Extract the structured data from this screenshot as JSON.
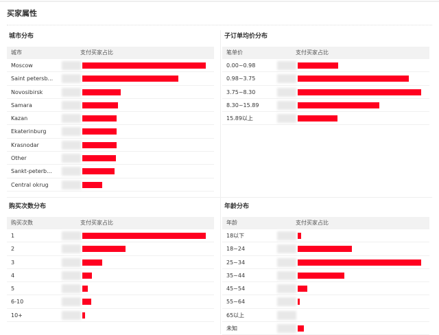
{
  "page_title": "买家属性",
  "accent_color": "#ff0020",
  "panels": [
    {
      "title": "城市分布",
      "col1": "城市",
      "col2": "支付买家占比",
      "rows": [
        {
          "label": "Moscow",
          "share": 1.0
        },
        {
          "label": "Saint petersb...",
          "share": 0.78
        },
        {
          "label": "Novosibirsk",
          "share": 0.31
        },
        {
          "label": "Samara",
          "share": 0.29
        },
        {
          "label": "Kazan",
          "share": 0.28
        },
        {
          "label": "Ekaterinburg",
          "share": 0.28
        },
        {
          "label": "Krasnodar",
          "share": 0.28
        },
        {
          "label": "Other",
          "share": 0.27
        },
        {
          "label": "Sankt-peterb...",
          "share": 0.26
        },
        {
          "label": "Central okrug",
          "share": 0.16
        }
      ]
    },
    {
      "title": "子订单均价分布",
      "col1": "笔单价",
      "col2": "支付买家占比",
      "rows": [
        {
          "label": "0.00~0.98",
          "share": 0.33
        },
        {
          "label": "0.98~3.75",
          "share": 0.9
        },
        {
          "label": "3.75~8.30",
          "share": 1.0
        },
        {
          "label": "8.30~15.89",
          "share": 0.66
        },
        {
          "label": "15.89以上",
          "share": 0.32
        }
      ]
    },
    {
      "title": "购买次数分布",
      "col1": "购买次数",
      "col2": "支付买家占比",
      "rows": [
        {
          "label": "1",
          "share": 1.0
        },
        {
          "label": "2",
          "share": 0.35
        },
        {
          "label": "3",
          "share": 0.16
        },
        {
          "label": "4",
          "share": 0.08
        },
        {
          "label": "5",
          "share": 0.045
        },
        {
          "label": "6-10",
          "share": 0.07
        },
        {
          "label": "10+",
          "share": 0.02
        }
      ]
    },
    {
      "title": "年龄分布",
      "col1": "年龄",
      "col2": "支付买家占比",
      "rows": [
        {
          "label": "18以下",
          "share": 0.03
        },
        {
          "label": "18~24",
          "share": 0.44
        },
        {
          "label": "25~34",
          "share": 1.0
        },
        {
          "label": "35~44",
          "share": 0.38
        },
        {
          "label": "45~54",
          "share": 0.08
        },
        {
          "label": "55~64",
          "share": 0.015
        },
        {
          "label": "65以上",
          "share": 0
        },
        {
          "label": "未知",
          "share": 0.05
        }
      ]
    }
  ]
}
